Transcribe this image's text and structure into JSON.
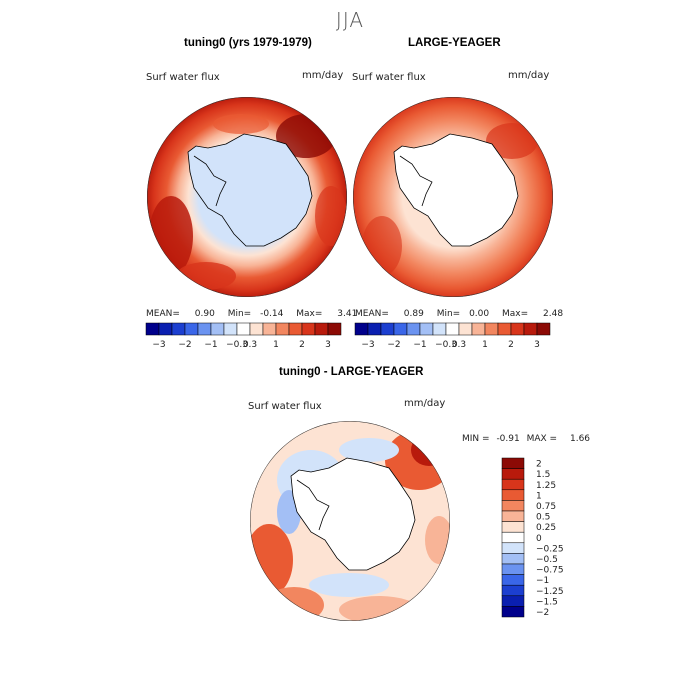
{
  "figure": {
    "season": "JJA",
    "panels": [
      {
        "title": "tuning0 (yrs 1979-1979)",
        "variable": "Surf water flux",
        "units": "mm/day",
        "stats": {
          "mean_label": "MEAN=",
          "mean": "0.90",
          "min_label": "Min=",
          "min": "-0.14",
          "max_label": "Max=",
          "max": "3.41"
        }
      },
      {
        "title": "LARGE-YEAGER",
        "variable": "Surf water flux",
        "units": "mm/day",
        "stats": {
          "mean_label": "MEAN=",
          "mean": "0.89",
          "min_label": "Min=",
          "min": "0.00",
          "max_label": "Max=",
          "max": "2.48"
        }
      },
      {
        "title": "tuning0 - LARGE-YEAGER",
        "variable": "Surf water flux",
        "units": "mm/day",
        "stats": {
          "min_label": "MIN =",
          "min": "-0.91",
          "max_label": "MAX =",
          "max": "1.66"
        }
      }
    ],
    "colorbar_top": {
      "tick_labels": [
        "-3",
        "-2",
        "-1",
        "-0.3",
        "0.3",
        "1",
        "2",
        "3"
      ],
      "colors": [
        "#00008b",
        "#0a1fb0",
        "#1c3fd0",
        "#3a66e8",
        "#6b93f0",
        "#a3bff5",
        "#d2e3fa",
        "#ffffff",
        "#fde3d3",
        "#f8b497",
        "#f2865f",
        "#e95a33",
        "#d8351b",
        "#b81a0c",
        "#8c0a05"
      ]
    },
    "colorbar_diff": {
      "tick_labels": [
        "2",
        "1.5",
        "1.25",
        "1",
        "0.75",
        "0.5",
        "0.25",
        "0",
        "-0.25",
        "-0.5",
        "-0.75",
        "-1",
        "-1.25",
        "-1.5",
        "-2"
      ],
      "colors": [
        "#8c0a05",
        "#b81a0c",
        "#d8351b",
        "#e95a33",
        "#f2865f",
        "#f8b497",
        "#fde3d3",
        "#ffffff",
        "#d2e3fa",
        "#a3bff5",
        "#6b93f0",
        "#3a66e8",
        "#1c3fd0",
        "#0a1fb0",
        "#00008b"
      ]
    }
  }
}
